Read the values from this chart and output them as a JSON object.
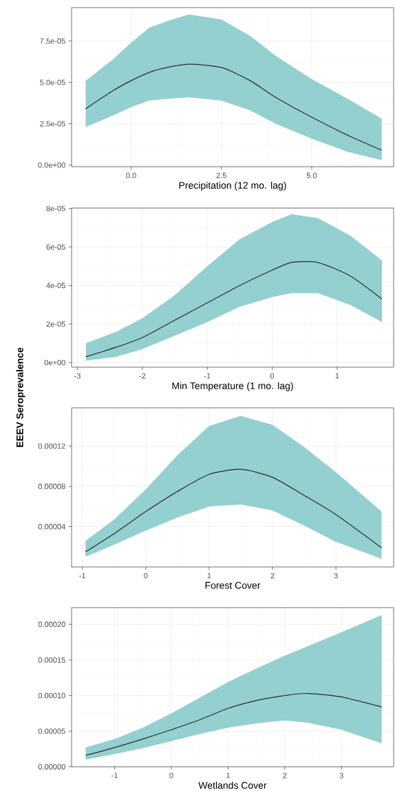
{
  "chart_data": [
    {
      "type": "line",
      "xlabel": "Precipitation (12 mo. lag)",
      "xlim": [
        -1.65,
        7.27
      ],
      "ylim": [
        -1e-06,
        9.52e-05
      ],
      "grid": true,
      "xticks": [
        {
          "value": 0,
          "label": "0.0"
        },
        {
          "value": 2.5,
          "label": "2.5"
        },
        {
          "value": 5,
          "label": "5.0"
        }
      ],
      "yticks": [
        {
          "value": 0,
          "label": "0.0e+00"
        },
        {
          "value": 2.5e-05,
          "label": "2.5e-05"
        },
        {
          "value": 5e-05,
          "label": "5.0e-05"
        },
        {
          "value": 7.5e-05,
          "label": "7.5e-05"
        }
      ],
      "x": [
        -1.26,
        -0.5,
        0,
        0.5,
        1,
        1.6,
        2.5,
        3.3,
        4,
        5,
        6,
        6.94
      ],
      "series": [
        {
          "color": "#2b2b2b",
          "values": [
            3.4e-05,
            4.5e-05,
            5.1e-05,
            5.6e-05,
            5.9e-05,
            6.1e-05,
            5.9e-05,
            5.1e-05,
            4.1e-05,
            2.9e-05,
            1.8e-05,
            9e-06
          ],
          "upper": [
            5.1e-05,
            6.4e-05,
            7.4e-05,
            8.3e-05,
            8.7e-05,
            9.1e-05,
            8.8e-05,
            7.8e-05,
            6.6e-05,
            5.2e-05,
            4e-05,
            2.8e-05
          ],
          "lower": [
            2.3e-05,
            3e-05,
            3.5e-05,
            3.9e-05,
            4e-05,
            4.1e-05,
            3.9e-05,
            3.3e-05,
            2.5e-05,
            1.6e-05,
            8e-06,
            3e-06
          ]
        }
      ]
    },
    {
      "type": "line",
      "xlabel": "Min Temperature (1 mo. lag)",
      "xlim": [
        -3.09,
        1.87
      ],
      "ylim": [
        -2.4e-06,
        8.02e-05
      ],
      "grid": true,
      "xticks": [
        -3,
        -2,
        -1,
        0,
        1
      ],
      "yticks": [
        {
          "value": 0,
          "label": "0e+00"
        },
        {
          "value": 2e-05,
          "label": "2e-05"
        },
        {
          "value": 4e-05,
          "label": "4e-05"
        },
        {
          "value": 6e-05,
          "label": "6e-05"
        },
        {
          "value": 8e-05,
          "label": "8e-05"
        }
      ],
      "x": [
        -2.87,
        -2.4,
        -2,
        -1.5,
        -1,
        -0.5,
        0,
        0.3,
        0.7,
        1.2,
        1.69
      ],
      "series": [
        {
          "color": "#2b2b2b",
          "values": [
            3e-06,
            8e-06,
            1.3e-05,
            2.2e-05,
            3.1e-05,
            4e-05,
            4.8e-05,
            5.2e-05,
            5.2e-05,
            4.5e-05,
            3.3e-05
          ],
          "upper": [
            1e-05,
            1.6e-05,
            2.3e-05,
            3.5e-05,
            5e-05,
            6.4e-05,
            7.3e-05,
            7.7e-05,
            7.5e-05,
            6.6e-05,
            5.3e-05
          ],
          "lower": [
            1e-06,
            3e-06,
            7e-06,
            1.4e-05,
            2.1e-05,
            2.9e-05,
            3.4e-05,
            3.6e-05,
            3.6e-05,
            3e-05,
            2.1e-05
          ]
        }
      ]
    },
    {
      "type": "line",
      "xlabel": "Forest Cover",
      "ylabel": "EEEV Seroprevalence",
      "xlim": [
        -1.17,
        3.91
      ],
      "ylim": [
        0,
        0.000158
      ],
      "grid": true,
      "xticks": [
        -1,
        0,
        1,
        2,
        3
      ],
      "yticks": [
        {
          "value": 4e-05,
          "label": "0.00004"
        },
        {
          "value": 8e-05,
          "label": "0.00008"
        },
        {
          "value": 0.00012,
          "label": "0.00012"
        }
      ],
      "x": [
        -0.95,
        -0.5,
        0,
        0.5,
        1,
        1.5,
        2,
        2.5,
        3,
        3.72
      ],
      "series": [
        {
          "color": "#2b2b2b",
          "values": [
            1.5e-05,
            3.3e-05,
            5.5e-05,
            7.5e-05,
            9.2e-05,
            9.7e-05,
            8.9e-05,
            7.1e-05,
            5.2e-05,
            1.9e-05
          ],
          "upper": [
            2.6e-05,
            4.7e-05,
            7.7e-05,
            0.000111,
            0.00014,
            0.00015,
            0.000141,
            0.000119,
            9.4e-05,
            5.5e-05
          ],
          "lower": [
            1e-05,
            2.2e-05,
            3.6e-05,
            4.9e-05,
            6e-05,
            6.2e-05,
            5.6e-05,
            4.1e-05,
            2.5e-05,
            8e-06
          ]
        }
      ]
    },
    {
      "type": "line",
      "xlabel": "Wetlands Cover",
      "xlim": [
        -1.76,
        3.92
      ],
      "ylim": [
        0,
        0.0002235
      ],
      "grid": true,
      "xticks": [
        -1,
        0,
        1,
        2,
        3
      ],
      "yticks": [
        {
          "value": 0,
          "label": "0.00000"
        },
        {
          "value": 5e-05,
          "label": "0.00005"
        },
        {
          "value": 0.0001,
          "label": "0.00010"
        },
        {
          "value": 0.00015,
          "label": "0.00015"
        },
        {
          "value": 0.0002,
          "label": "0.00020"
        }
      ],
      "x": [
        -1.51,
        -1,
        -0.5,
        0,
        0.5,
        1,
        1.5,
        2,
        2.4,
        3,
        3.71
      ],
      "series": [
        {
          "color": "#2b2b2b",
          "values": [
            1.6e-05,
            2.7e-05,
            3.9e-05,
            5.2e-05,
            6.6e-05,
            8.2e-05,
            9.3e-05,
            0.0001,
            0.000103,
            9.8e-05,
            8.4e-05
          ],
          "upper": [
            2.7e-05,
            3.9e-05,
            5.5e-05,
            7.5e-05,
            9.7e-05,
            0.000119,
            0.000138,
            0.000156,
            0.000169,
            0.000189,
            0.000213
          ],
          "lower": [
            1e-05,
            1.8e-05,
            2.6e-05,
            3.6e-05,
            4.6e-05,
            5.5e-05,
            6.1e-05,
            6.5e-05,
            6.2e-05,
            5.2e-05,
            3.3e-05
          ]
        }
      ]
    }
  ]
}
